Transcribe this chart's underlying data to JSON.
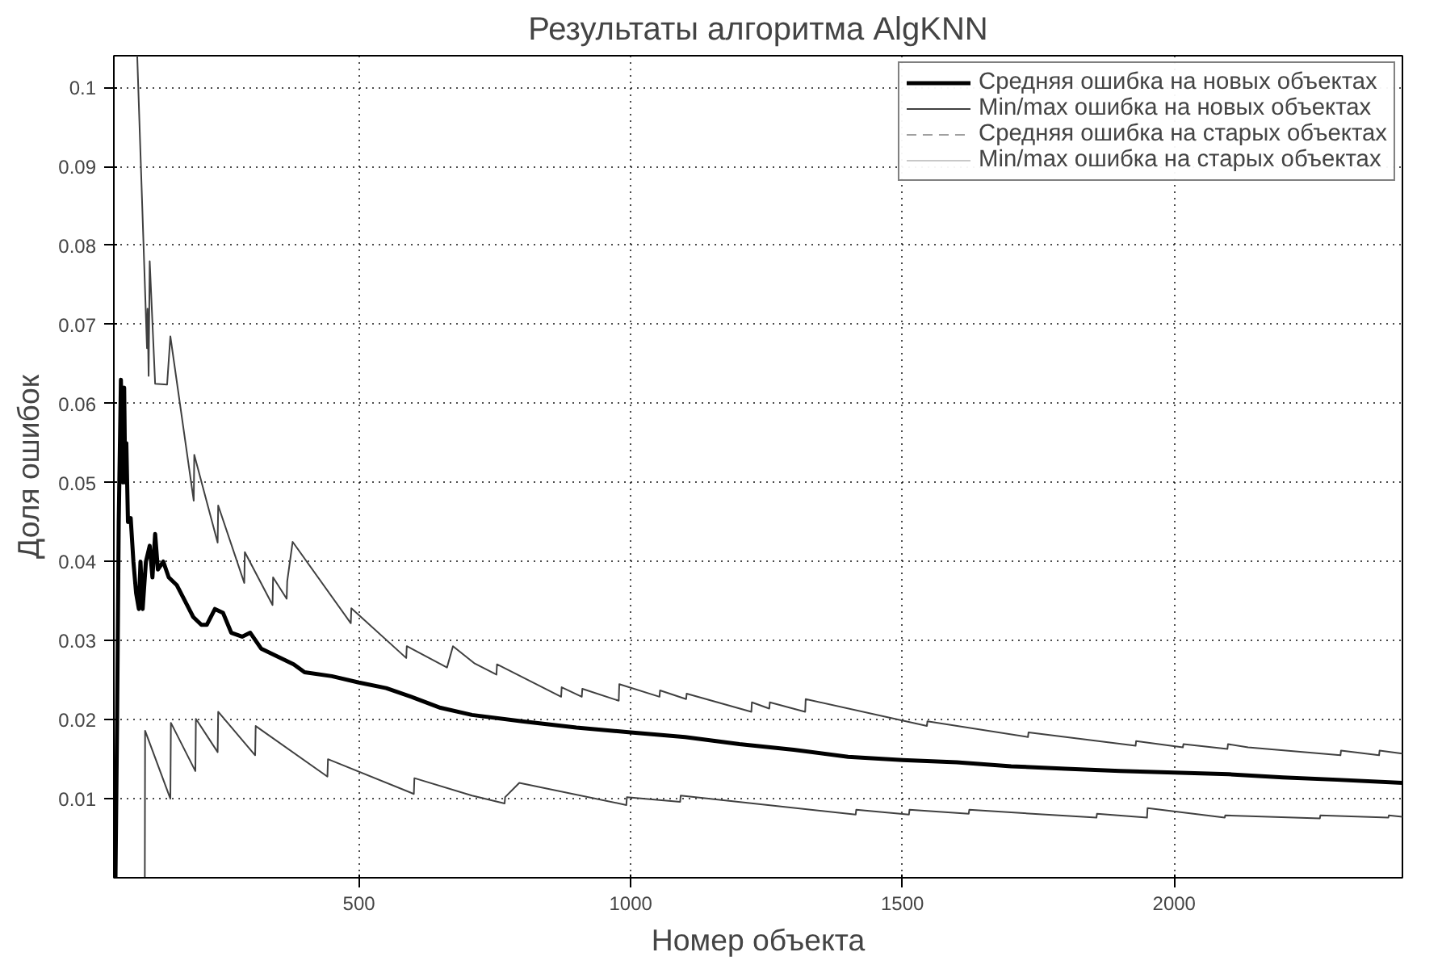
{
  "chart_data": {
    "type": "line",
    "title": "Результаты алгоритма AlgKNN",
    "xlabel": "Номер объекта",
    "ylabel": "Доля ошибок",
    "xlim": [
      49,
      2420
    ],
    "ylim": [
      0,
      0.104
    ],
    "xticks": [
      500,
      1000,
      1500,
      2000
    ],
    "yticks": [
      0.01,
      0.02,
      0.03,
      0.04,
      0.05,
      0.06,
      0.07,
      0.08,
      0.09,
      0.1
    ],
    "grid": true,
    "legend": "top right",
    "marker": "none",
    "series": [
      {
        "name": "Средняя ошибка на новых объектах",
        "color": "#000000",
        "line_style": "solid",
        "x": [
          52,
          55,
          58,
          62,
          66,
          68,
          70,
          72,
          75,
          80,
          85,
          90,
          95,
          98,
          102,
          108,
          115,
          120,
          125,
          130,
          140,
          150,
          165,
          180,
          195,
          210,
          220,
          235,
          250,
          265,
          285,
          300,
          320,
          350,
          380,
          400,
          450,
          500,
          550,
          600,
          650,
          708,
          800,
          900,
          1000,
          1100,
          1200,
          1300,
          1400,
          1500,
          1600,
          1700,
          1800,
          1900,
          2000,
          2100,
          2200,
          2300,
          2420
        ],
        "values": [
          0.0,
          0.02,
          0.045,
          0.063,
          0.05,
          0.062,
          0.05,
          0.055,
          0.045,
          0.0455,
          0.04,
          0.036,
          0.034,
          0.04,
          0.034,
          0.04,
          0.042,
          0.038,
          0.0435,
          0.039,
          0.04,
          0.038,
          0.037,
          0.035,
          0.033,
          0.032,
          0.032,
          0.034,
          0.0335,
          0.031,
          0.0305,
          0.031,
          0.029,
          0.028,
          0.027,
          0.026,
          0.0255,
          0.0247,
          0.024,
          0.0228,
          0.0215,
          0.0206,
          0.0198,
          0.019,
          0.0184,
          0.0178,
          0.0169,
          0.0162,
          0.0153,
          0.0149,
          0.0146,
          0.0141,
          0.0138,
          0.0135,
          0.0133,
          0.0131,
          0.0127,
          0.0124,
          0.012
        ]
      },
      {
        "name": "Min/max ошибка на новых объектах",
        "color": "#404040",
        "line_style": "solid",
        "x": [
          92,
          110,
          111,
          113,
          115,
          125,
          147,
          153,
          196,
          197,
          240,
          241,
          289,
          290,
          341,
          342,
          367,
          368,
          378,
          485,
          486,
          587,
          588,
          662,
          673,
          713,
          753,
          754,
          872,
          873,
          910,
          911,
          978,
          979,
          1053,
          1054,
          1102,
          1103,
          1222,
          1223,
          1255,
          1256,
          1321,
          1322,
          1545,
          1546,
          1731,
          1732,
          1929,
          1930,
          2016,
          2017,
          2098,
          2099,
          2136,
          2306,
          2307,
          2377,
          2378,
          2420
        ],
        "values": [
          0.104,
          0.067,
          0.072,
          0.0635,
          0.078,
          0.0625,
          0.0624,
          0.0685,
          0.0477,
          0.0535,
          0.0424,
          0.0471,
          0.0373,
          0.0412,
          0.0345,
          0.038,
          0.0353,
          0.0375,
          0.0425,
          0.0322,
          0.0341,
          0.0278,
          0.0293,
          0.0266,
          0.0293,
          0.0271,
          0.0257,
          0.027,
          0.0229,
          0.0241,
          0.0229,
          0.0239,
          0.0224,
          0.0245,
          0.0229,
          0.0237,
          0.0226,
          0.0233,
          0.021,
          0.0222,
          0.0214,
          0.0222,
          0.021,
          0.0226,
          0.0192,
          0.0198,
          0.0178,
          0.0184,
          0.0167,
          0.0173,
          0.0165,
          0.0169,
          0.0163,
          0.0169,
          0.0165,
          0.0155,
          0.0161,
          0.0155,
          0.0161,
          0.0157
        ]
      },
      {
        "color": "#404040",
        "line_style": "solid",
        "x": [
          106,
          106.5,
          153,
          154,
          199,
          200,
          240,
          241,
          309,
          310,
          442,
          443,
          601,
          602,
          708,
          768,
          769,
          795,
          992,
          993,
          1091,
          1092,
          1414,
          1415,
          1512,
          1513,
          1622,
          1623,
          1857,
          1858,
          1950,
          1951,
          2093,
          2094,
          2268,
          2269,
          2394,
          2395,
          2420
        ],
        "values": [
          0.0,
          0.0186,
          0.01,
          0.0196,
          0.0135,
          0.0201,
          0.0159,
          0.021,
          0.0155,
          0.0192,
          0.0128,
          0.015,
          0.0106,
          0.0126,
          0.0104,
          0.0094,
          0.0102,
          0.012,
          0.0092,
          0.0102,
          0.0096,
          0.0104,
          0.008,
          0.0086,
          0.008,
          0.0086,
          0.0081,
          0.0086,
          0.0076,
          0.0081,
          0.0076,
          0.0088,
          0.0076,
          0.0079,
          0.0075,
          0.0079,
          0.0076,
          0.0079,
          0.0077
        ]
      },
      {
        "name": "Средняя ошибка на старых объектах",
        "color": "#a0a0a0",
        "line_style": "dashed",
        "values": [
          null
        ]
      },
      {
        "name": "Min/max ошибка на старых объектах",
        "color": "#c8c8c8",
        "line_style": "solid",
        "values": [
          null
        ]
      }
    ]
  }
}
